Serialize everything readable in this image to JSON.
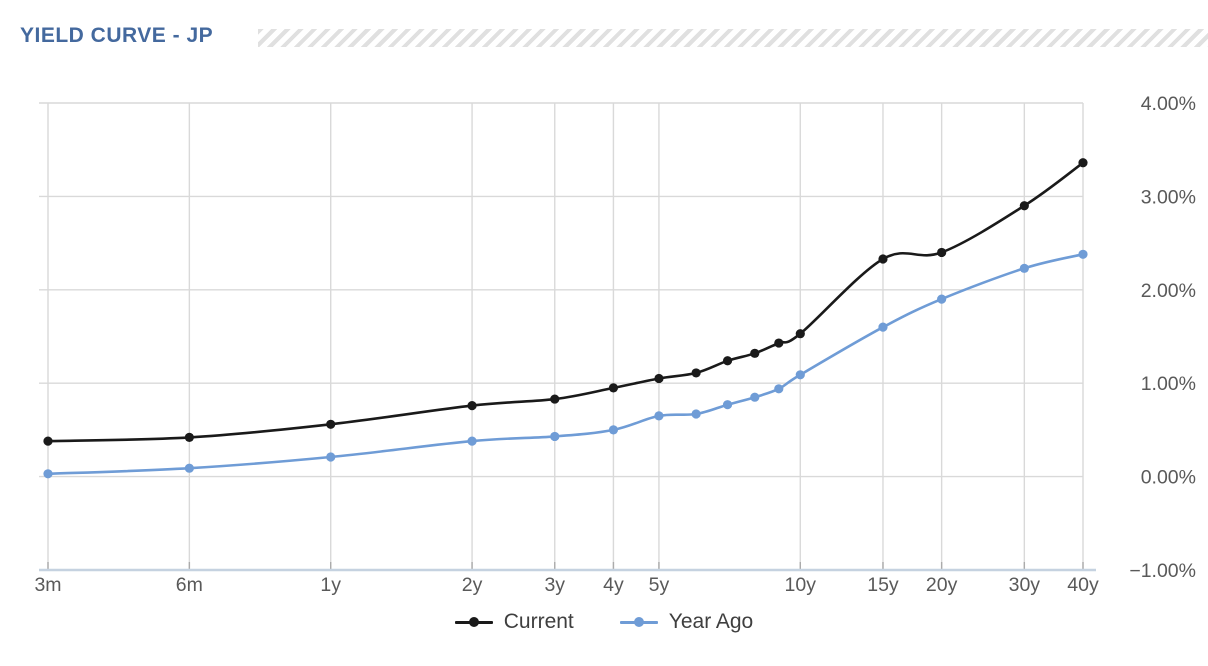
{
  "header": {
    "title": "YIELD CURVE - JP"
  },
  "chart_data": {
    "type": "line",
    "title": "YIELD CURVE - JP",
    "x_scale": "log",
    "grid": "on",
    "legend_position": "bottom",
    "categories": [
      "3m",
      "6m",
      "1y",
      "2y",
      "3y",
      "4y",
      "5y",
      "6y",
      "7y",
      "8y",
      "9y",
      "10y",
      "15y",
      "20y",
      "30y",
      "40y"
    ],
    "x_months": [
      3,
      6,
      12,
      24,
      36,
      48,
      60,
      72,
      84,
      96,
      108,
      120,
      180,
      240,
      360,
      480
    ],
    "x_tick_labels": [
      "3m",
      "6m",
      "1y",
      "2y",
      "3y",
      "4y",
      "5y",
      "10y",
      "15y",
      "20y",
      "30y",
      "40y"
    ],
    "x_tick_months": [
      3,
      6,
      12,
      24,
      36,
      48,
      60,
      120,
      180,
      240,
      360,
      480
    ],
    "y_tick_labels": [
      "4.00%",
      "3.00%",
      "2.00%",
      "1.00%",
      "0.00%",
      "−1.00%"
    ],
    "y_tick_values": [
      4,
      3,
      2,
      1,
      0,
      -1
    ],
    "ylim": [
      -1,
      4
    ],
    "series": [
      {
        "name": "Current",
        "color": "#1a1a1a",
        "values": [
          0.38,
          0.42,
          0.56,
          0.76,
          0.83,
          0.95,
          1.05,
          1.11,
          1.24,
          1.32,
          1.43,
          1.53,
          2.33,
          2.4,
          2.9,
          3.36
        ]
      },
      {
        "name": "Year Ago",
        "color": "#6f9cd6",
        "values": [
          0.03,
          0.09,
          0.21,
          0.38,
          0.43,
          0.5,
          0.65,
          0.67,
          0.77,
          0.85,
          0.94,
          1.09,
          1.6,
          1.9,
          2.23,
          2.38
        ]
      }
    ]
  },
  "colors": {
    "title": "#44699e",
    "hatch_stripe": "#e0e0e0",
    "gridline": "#d9d9d9",
    "tick_mark": "#ababab",
    "axis_line": "#c5d2e0",
    "tick_label": "#595959",
    "legend_text": "#3f3f3f",
    "background": "#ffffff"
  }
}
